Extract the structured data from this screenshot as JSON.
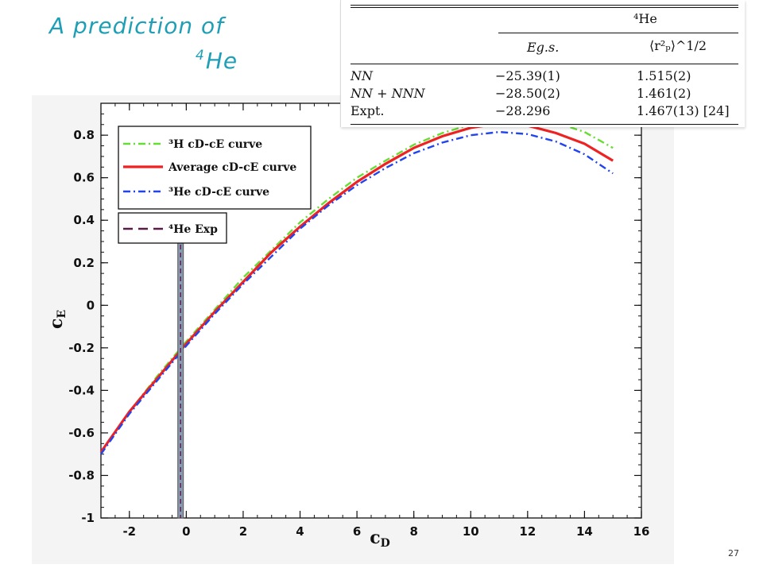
{
  "slide": {
    "title_line1": "A prediction of",
    "title_line2_sup": "4",
    "title_line2": "He",
    "page_number": "27"
  },
  "table": {
    "group_header": "⁴He",
    "col_energy": "Eg.s.",
    "col_radius": "⟨r²ₚ⟩^1/2",
    "rows": [
      {
        "label": "NN",
        "energy": "−25.39(1)",
        "radius": "1.515(2)"
      },
      {
        "label": "NN + NNN",
        "energy": "−28.50(2)",
        "radius": "1.461(2)"
      },
      {
        "label": "Expt.",
        "energy": "−28.296",
        "radius": "1.467(13) [24]"
      }
    ]
  },
  "chart_data": {
    "type": "line",
    "xlabel": "cD",
    "ylabel": "cE",
    "xlim": [
      -3,
      16
    ],
    "ylim": [
      -1,
      0.95
    ],
    "xticks": [
      "-2",
      "0",
      "2",
      "4",
      "6",
      "8",
      "10",
      "12",
      "14",
      "16"
    ],
    "yticks": [
      "-1",
      "-0.8",
      "-0.6",
      "-0.4",
      "-0.2",
      "0",
      "0.2",
      "0.4",
      "0.6",
      "0.8"
    ],
    "legend_position": "top-left",
    "series": [
      {
        "name": "³H cD-cE curve",
        "color": "#66dd33",
        "dash": "dash-dot",
        "points": [
          [
            -3,
            -0.69
          ],
          [
            -2,
            -0.5
          ],
          [
            -1,
            -0.33
          ],
          [
            0,
            -0.17
          ],
          [
            1,
            -0.02
          ],
          [
            2,
            0.13
          ],
          [
            3,
            0.26
          ],
          [
            4,
            0.39
          ],
          [
            5,
            0.5
          ],
          [
            6,
            0.6
          ],
          [
            7,
            0.68
          ],
          [
            8,
            0.755
          ],
          [
            9,
            0.81
          ],
          [
            10,
            0.85
          ],
          [
            11,
            0.87
          ],
          [
            12,
            0.875
          ],
          [
            13,
            0.86
          ],
          [
            14,
            0.815
          ],
          [
            15,
            0.74
          ]
        ]
      },
      {
        "name": "Average cD-cE curve",
        "color": "#ee2222",
        "dash": "solid",
        "points": [
          [
            -3,
            -0.69
          ],
          [
            -2,
            -0.5
          ],
          [
            -1,
            -0.34
          ],
          [
            0,
            -0.18
          ],
          [
            1,
            -0.03
          ],
          [
            2,
            0.11
          ],
          [
            3,
            0.25
          ],
          [
            4,
            0.37
          ],
          [
            5,
            0.48
          ],
          [
            6,
            0.58
          ],
          [
            7,
            0.665
          ],
          [
            8,
            0.74
          ],
          [
            9,
            0.795
          ],
          [
            10,
            0.835
          ],
          [
            11,
            0.855
          ],
          [
            12,
            0.845
          ],
          [
            13,
            0.81
          ],
          [
            14,
            0.76
          ],
          [
            15,
            0.68
          ]
        ]
      },
      {
        "name": "³He cD-cE curve",
        "color": "#2244ee",
        "dash": "dash-dot",
        "points": [
          [
            -3,
            -0.7
          ],
          [
            -2,
            -0.51
          ],
          [
            -1,
            -0.35
          ],
          [
            0,
            -0.19
          ],
          [
            1,
            -0.04
          ],
          [
            2,
            0.1
          ],
          [
            3,
            0.23
          ],
          [
            4,
            0.36
          ],
          [
            5,
            0.47
          ],
          [
            6,
            0.565
          ],
          [
            7,
            0.645
          ],
          [
            8,
            0.715
          ],
          [
            9,
            0.765
          ],
          [
            10,
            0.8
          ],
          [
            11,
            0.815
          ],
          [
            12,
            0.805
          ],
          [
            13,
            0.77
          ],
          [
            14,
            0.71
          ],
          [
            15,
            0.62
          ]
        ]
      }
    ],
    "vertical_marker": {
      "name": "⁴He Exp",
      "x": -0.2,
      "color": "#5a1a4a"
    }
  }
}
